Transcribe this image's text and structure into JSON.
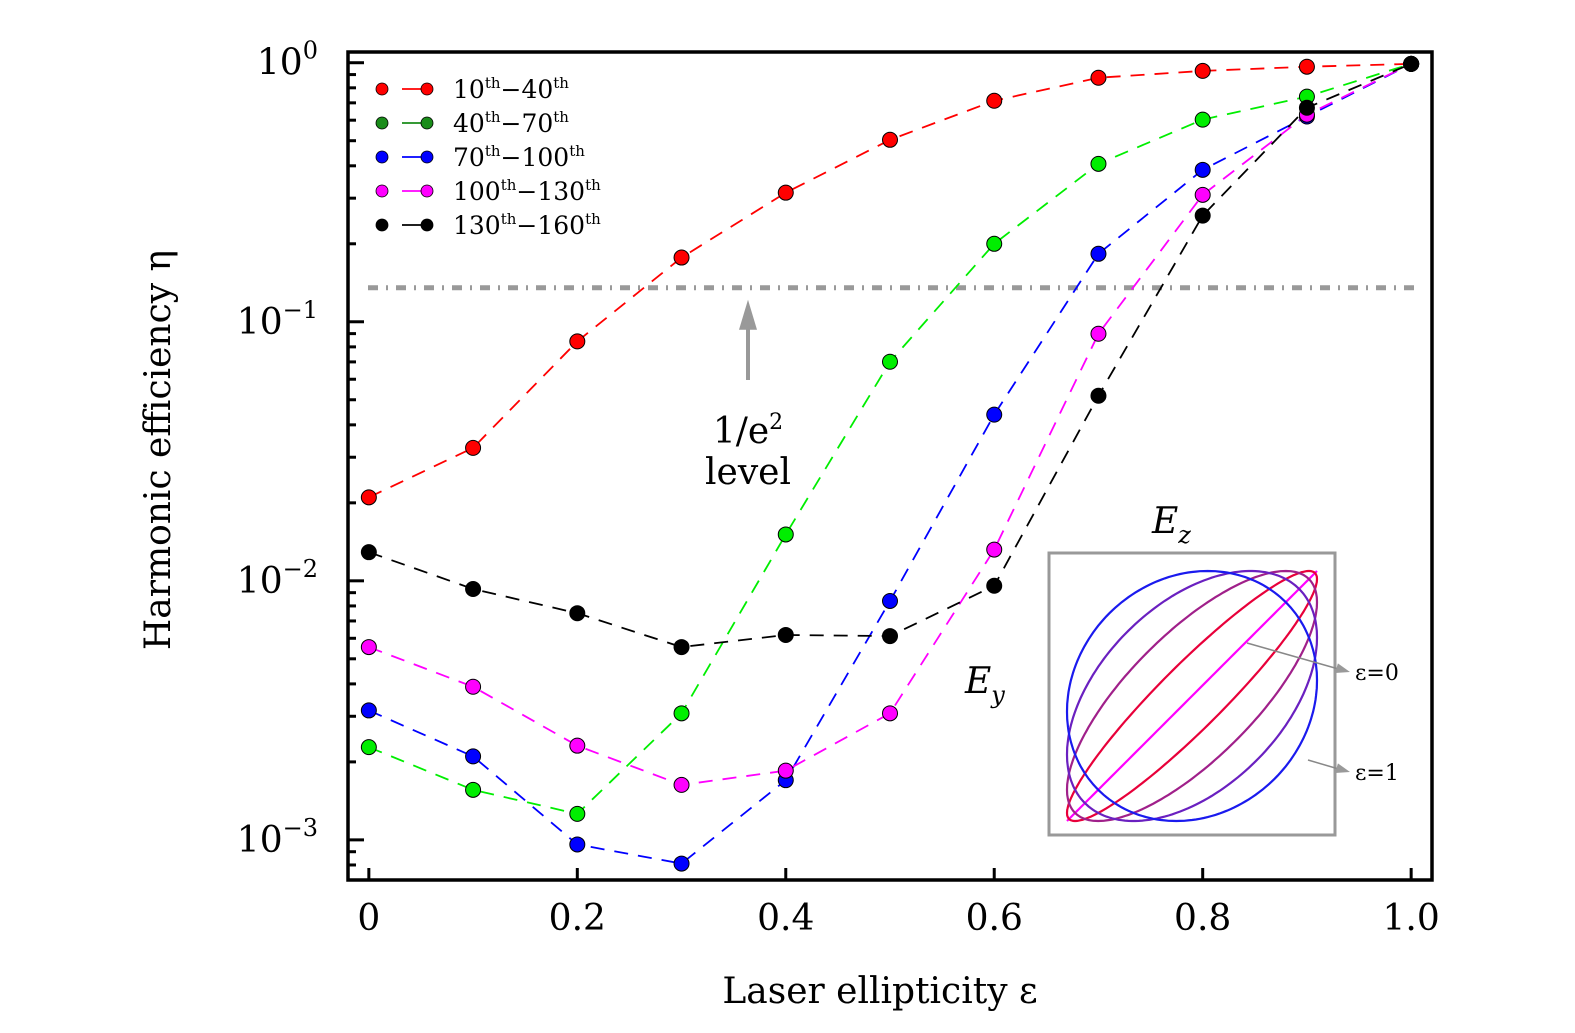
{
  "chart_data": {
    "type": "line",
    "title": "",
    "xlabel": "Laser ellipticity ε",
    "ylabel": "Harmonic efficiency η",
    "x": [
      0,
      0.1,
      0.2,
      0.3,
      0.4,
      0.5,
      0.6,
      0.7,
      0.8,
      0.9,
      1.0
    ],
    "xlim": [
      -0.02,
      1.02
    ],
    "ylim": [
      0.0007,
      1.1
    ],
    "yscale": "log",
    "xticks": [
      0,
      0.2,
      0.4,
      0.6,
      0.8,
      1.0
    ],
    "xtick_labels": [
      "0",
      "0.2",
      "0.4",
      "0.6",
      "0.8",
      "1.0"
    ],
    "yticks": [
      1,
      0.1,
      0.01,
      0.001
    ],
    "ytick_labels": [
      {
        "base": "10",
        "exp": "0"
      },
      {
        "base": "10",
        "exp": "−1"
      },
      {
        "base": "10",
        "exp": "−2"
      },
      {
        "base": "10",
        "exp": "−3"
      }
    ],
    "grid": false,
    "legend_position": "top-left",
    "series": [
      {
        "name": "10th−40th",
        "label_parts": [
          "10",
          "th",
          "−40",
          "th"
        ],
        "color": "#ff0000",
        "legend_color": "#ff0000",
        "values": [
          0.021,
          0.0326,
          0.084,
          0.177,
          0.315,
          0.504,
          0.713,
          0.875,
          0.93,
          0.965,
          0.99
        ]
      },
      {
        "name": "40th−70th",
        "label_parts": [
          "40",
          "th",
          "−70",
          "th"
        ],
        "color": "#00ee00",
        "legend_color": "#1a8c1a",
        "values": [
          0.00228,
          0.00156,
          0.00126,
          0.00308,
          0.0151,
          0.0701,
          0.2,
          0.407,
          0.603,
          0.74,
          0.99
        ]
      },
      {
        "name": "70th−100th",
        "label_parts": [
          "70",
          "th",
          "−100",
          "th"
        ],
        "color": "#0000ff",
        "legend_color": "#0000ff",
        "values": [
          0.00316,
          0.0021,
          0.00096,
          0.00081,
          0.0017,
          0.00836,
          0.0438,
          0.183,
          0.386,
          0.62,
          0.99
        ]
      },
      {
        "name": "100th−130th",
        "label_parts": [
          "100",
          "th",
          "−130",
          "th"
        ],
        "color": "#ff00ff",
        "legend_color": "#ff00ff",
        "values": [
          0.00555,
          0.0039,
          0.00231,
          0.00163,
          0.00185,
          0.00308,
          0.0132,
          0.0899,
          0.309,
          0.63,
          0.99
        ]
      },
      {
        "name": "130th−160th",
        "label_parts": [
          "130",
          "th",
          "−160",
          "th"
        ],
        "color": "#000000",
        "legend_color": "#000000",
        "values": [
          0.0129,
          0.0093,
          0.0075,
          0.00555,
          0.00618,
          0.00612,
          0.00957,
          0.0518,
          0.257,
          0.67,
          0.99
        ]
      }
    ],
    "reference_line": {
      "value": 0.1353,
      "label_line1": "1/e²",
      "label_line1_base": "1/e",
      "label_line1_exp": "2",
      "label_line2": "level",
      "color": "#999999",
      "style": "dash-dot"
    },
    "inset": {
      "xlabel": "E",
      "xlabel_sub": "z",
      "ylabel": "E",
      "ylabel_sub": "y",
      "curve_ellipticities": [
        0,
        0.25,
        0.5,
        0.75,
        1.0
      ],
      "annotations": [
        {
          "text": "ε=0",
          "target_ellipticity": 0
        },
        {
          "text": "ε=1",
          "target_ellipticity": 1
        }
      ],
      "frame_color": "#999999",
      "color_start": "#ff00ff",
      "color_end": "#0000ff"
    }
  }
}
